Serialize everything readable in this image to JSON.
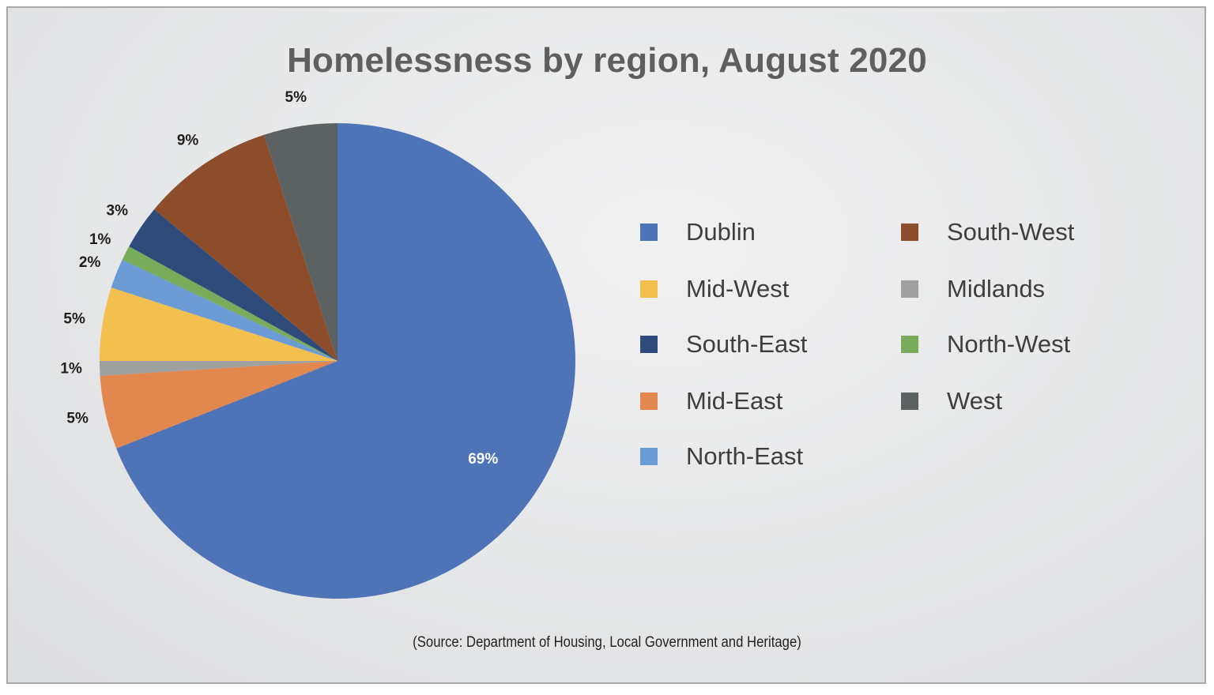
{
  "chart_data": {
    "type": "pie",
    "title": "Homelessness by region, August 2020",
    "source": "(Source: Department of Housing, Local Government and Heritage)",
    "slices": [
      {
        "name": "Dublin",
        "value": 69,
        "label": "69%",
        "color": "#4e73b6"
      },
      {
        "name": "Mid-East",
        "value": 5,
        "label": "5%",
        "color": "#e2874e"
      },
      {
        "name": "Midlands",
        "value": 1,
        "label": "1%",
        "color": "#9fa0a0"
      },
      {
        "name": "Mid-West",
        "value": 5,
        "label": "5%",
        "color": "#f3c04f"
      },
      {
        "name": "North-East",
        "value": 2,
        "label": "2%",
        "color": "#6a9bd5"
      },
      {
        "name": "North-West",
        "value": 1,
        "label": "1%",
        "color": "#78ac5a"
      },
      {
        "name": "South-East",
        "value": 3,
        "label": "3%",
        "color": "#2f4b7c"
      },
      {
        "name": "South-West",
        "value": 9,
        "label": "9%",
        "color": "#8d4d2a"
      },
      {
        "name": "West",
        "value": 5,
        "label": "5%",
        "color": "#5c6262"
      }
    ],
    "legend": {
      "position": "right",
      "columns": [
        [
          "Dublin",
          "Mid-West",
          "South-East",
          "Mid-East",
          "North-East"
        ],
        [
          "South-West",
          "Midlands",
          "North-West",
          "West"
        ]
      ]
    }
  }
}
